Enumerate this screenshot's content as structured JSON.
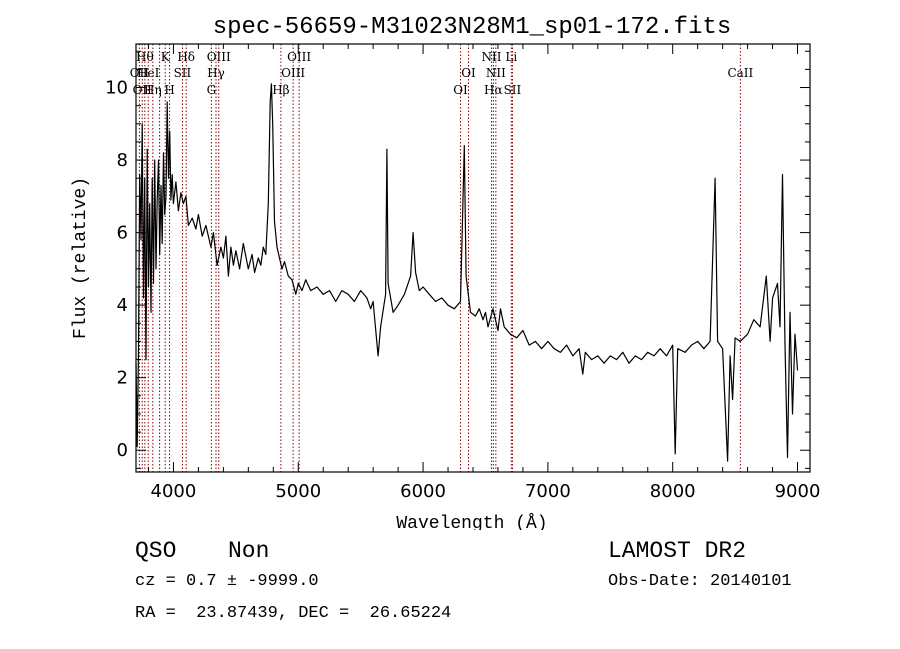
{
  "chart_data": {
    "type": "line",
    "title": "spec-56659-M31023N28M1_sp01-172.fits",
    "xlabel": "Wavelength (Å)",
    "ylabel": "Flux (relative)",
    "xlim": [
      3700,
      9100
    ],
    "ylim": [
      -0.6,
      11.2
    ],
    "x_ticks": [
      4000,
      5000,
      6000,
      7000,
      8000,
      9000
    ],
    "y_ticks": [
      0,
      2,
      4,
      6,
      8,
      10
    ],
    "grid": false,
    "series": [
      {
        "values": [
          [
            3700,
            2.4
          ],
          [
            3710,
            0.1
          ],
          [
            3720,
            2.8
          ],
          [
            3730,
            7.6
          ],
          [
            3740,
            5.8
          ],
          [
            3750,
            9.0
          ],
          [
            3760,
            4.2
          ],
          [
            3770,
            7.5
          ],
          [
            3780,
            2.5
          ],
          [
            3790,
            8.3
          ],
          [
            3800,
            4.5
          ],
          [
            3810,
            6.8
          ],
          [
            3820,
            3.8
          ],
          [
            3830,
            7.5
          ],
          [
            3840,
            4.6
          ],
          [
            3850,
            8.0
          ],
          [
            3860,
            5.0
          ],
          [
            3870,
            6.9
          ],
          [
            3880,
            8.0
          ],
          [
            3890,
            5.4
          ],
          [
            3900,
            7.3
          ],
          [
            3910,
            5.7
          ],
          [
            3920,
            8.2
          ],
          [
            3930,
            6.5
          ],
          [
            3940,
            7.0
          ],
          [
            3950,
            9.6
          ],
          [
            3960,
            7.5
          ],
          [
            3970,
            8.8
          ],
          [
            3980,
            6.9
          ],
          [
            3990,
            7.6
          ],
          [
            4000,
            6.8
          ],
          [
            4020,
            7.4
          ],
          [
            4040,
            6.6
          ],
          [
            4060,
            7.1
          ],
          [
            4080,
            6.8
          ],
          [
            4100,
            7.0
          ],
          [
            4120,
            6.2
          ],
          [
            4150,
            6.4
          ],
          [
            4180,
            6.1
          ],
          [
            4200,
            6.5
          ],
          [
            4230,
            5.9
          ],
          [
            4260,
            6.2
          ],
          [
            4300,
            5.6
          ],
          [
            4320,
            6.0
          ],
          [
            4350,
            5.1
          ],
          [
            4380,
            5.6
          ],
          [
            4400,
            5.3
          ],
          [
            4420,
            5.9
          ],
          [
            4440,
            4.8
          ],
          [
            4460,
            5.6
          ],
          [
            4480,
            5.1
          ],
          [
            4500,
            5.5
          ],
          [
            4530,
            5.0
          ],
          [
            4560,
            5.7
          ],
          [
            4600,
            5.0
          ],
          [
            4630,
            5.4
          ],
          [
            4650,
            4.9
          ],
          [
            4680,
            5.3
          ],
          [
            4700,
            5.1
          ],
          [
            4720,
            5.6
          ],
          [
            4740,
            5.4
          ],
          [
            4760,
            6.8
          ],
          [
            4775,
            9.6
          ],
          [
            4785,
            10.1
          ],
          [
            4795,
            9.0
          ],
          [
            4810,
            6.3
          ],
          [
            4830,
            5.6
          ],
          [
            4850,
            5.3
          ],
          [
            4870,
            5.0
          ],
          [
            4890,
            5.2
          ],
          [
            4920,
            4.8
          ],
          [
            4950,
            4.7
          ],
          [
            4980,
            4.3
          ],
          [
            5000,
            4.6
          ],
          [
            5030,
            4.4
          ],
          [
            5060,
            4.7
          ],
          [
            5100,
            4.4
          ],
          [
            5150,
            4.5
          ],
          [
            5200,
            4.3
          ],
          [
            5250,
            4.4
          ],
          [
            5300,
            4.1
          ],
          [
            5350,
            4.4
          ],
          [
            5400,
            4.3
          ],
          [
            5450,
            4.1
          ],
          [
            5500,
            4.4
          ],
          [
            5550,
            4.2
          ],
          [
            5580,
            3.9
          ],
          [
            5600,
            4.1
          ],
          [
            5640,
            2.6
          ],
          [
            5660,
            3.4
          ],
          [
            5700,
            4.3
          ],
          [
            5710,
            8.3
          ],
          [
            5720,
            4.6
          ],
          [
            5760,
            3.8
          ],
          [
            5800,
            4.0
          ],
          [
            5850,
            4.3
          ],
          [
            5900,
            4.8
          ],
          [
            5920,
            6.0
          ],
          [
            5940,
            4.9
          ],
          [
            5970,
            4.4
          ],
          [
            6000,
            4.5
          ],
          [
            6050,
            4.3
          ],
          [
            6100,
            4.1
          ],
          [
            6150,
            4.2
          ],
          [
            6200,
            4.0
          ],
          [
            6250,
            3.9
          ],
          [
            6300,
            4.1
          ],
          [
            6330,
            8.4
          ],
          [
            6345,
            4.8
          ],
          [
            6380,
            3.8
          ],
          [
            6420,
            3.7
          ],
          [
            6450,
            3.9
          ],
          [
            6480,
            3.6
          ],
          [
            6500,
            3.8
          ],
          [
            6520,
            3.4
          ],
          [
            6560,
            3.9
          ],
          [
            6580,
            3.6
          ],
          [
            6600,
            3.3
          ],
          [
            6620,
            3.9
          ],
          [
            6650,
            3.4
          ],
          [
            6700,
            3.2
          ],
          [
            6750,
            3.1
          ],
          [
            6800,
            3.3
          ],
          [
            6850,
            2.9
          ],
          [
            6900,
            3.0
          ],
          [
            6950,
            2.8
          ],
          [
            7000,
            3.0
          ],
          [
            7050,
            2.8
          ],
          [
            7100,
            2.7
          ],
          [
            7150,
            2.9
          ],
          [
            7200,
            2.6
          ],
          [
            7250,
            2.8
          ],
          [
            7280,
            2.1
          ],
          [
            7300,
            2.7
          ],
          [
            7350,
            2.5
          ],
          [
            7400,
            2.6
          ],
          [
            7450,
            2.4
          ],
          [
            7500,
            2.6
          ],
          [
            7550,
            2.5
          ],
          [
            7600,
            2.7
          ],
          [
            7650,
            2.4
          ],
          [
            7700,
            2.6
          ],
          [
            7750,
            2.5
          ],
          [
            7800,
            2.7
          ],
          [
            7850,
            2.6
          ],
          [
            7900,
            2.8
          ],
          [
            7950,
            2.6
          ],
          [
            8000,
            2.9
          ],
          [
            8020,
            -0.1
          ],
          [
            8040,
            2.8
          ],
          [
            8100,
            2.7
          ],
          [
            8150,
            2.9
          ],
          [
            8200,
            3.0
          ],
          [
            8250,
            2.8
          ],
          [
            8300,
            3.0
          ],
          [
            8340,
            7.5
          ],
          [
            8360,
            3.0
          ],
          [
            8400,
            2.8
          ],
          [
            8440,
            -0.3
          ],
          [
            8460,
            2.6
          ],
          [
            8480,
            1.4
          ],
          [
            8500,
            3.1
          ],
          [
            8540,
            3.0
          ],
          [
            8600,
            3.2
          ],
          [
            8650,
            3.6
          ],
          [
            8700,
            3.4
          ],
          [
            8750,
            4.8
          ],
          [
            8780,
            3.0
          ],
          [
            8800,
            4.2
          ],
          [
            8840,
            4.6
          ],
          [
            8860,
            3.4
          ],
          [
            8880,
            7.6
          ],
          [
            8900,
            2.9
          ],
          [
            8920,
            -0.2
          ],
          [
            8940,
            3.8
          ],
          [
            8960,
            1.0
          ],
          [
            8980,
            3.2
          ],
          [
            9000,
            2.2
          ]
        ]
      }
    ],
    "line_markers": [
      {
        "wavelength": 3727,
        "label": "OII",
        "row": 1
      },
      {
        "wavelength": 3750,
        "label": "OII",
        "row": 2
      },
      {
        "wavelength": 3771,
        "label": "Hθ",
        "row": 0
      },
      {
        "wavelength": 3798,
        "label": "HeI",
        "row": 1
      },
      {
        "wavelength": 3835,
        "label": "Hη",
        "row": 2
      },
      {
        "wavelength": 3889,
        "label": "",
        "row": 0
      },
      {
        "wavelength": 3934,
        "label": "K",
        "row": 0
      },
      {
        "wavelength": 3969,
        "label": "H",
        "row": 2
      },
      {
        "wavelength": 4072,
        "label": "SII",
        "row": 1
      },
      {
        "wavelength": 4102,
        "label": "Hδ",
        "row": 0
      },
      {
        "wavelength": 4304,
        "label": "G",
        "row": 2
      },
      {
        "wavelength": 4341,
        "label": "Hγ",
        "row": 1
      },
      {
        "wavelength": 4363,
        "label": "OIII",
        "row": 0
      },
      {
        "wavelength": 4861,
        "label": "Hβ",
        "row": 2
      },
      {
        "wavelength": 4959,
        "label": "OIII",
        "row": 1
      },
      {
        "wavelength": 5007,
        "label": "OIII",
        "row": 0
      },
      {
        "wavelength": 6300,
        "label": "OI",
        "row": 2
      },
      {
        "wavelength": 6364,
        "label": "OI",
        "row": 1
      },
      {
        "wavelength": 6548,
        "label": "NII",
        "row": 0
      },
      {
        "wavelength": 6563,
        "label": "Hα",
        "row": 2
      },
      {
        "wavelength": 6583,
        "label": "NII",
        "row": 1
      },
      {
        "wavelength": 6707,
        "label": "Li",
        "row": 0
      },
      {
        "wavelength": 6716,
        "label": "SII",
        "row": 2
      },
      {
        "wavelength": 8542,
        "label": "CaII",
        "row": 1
      }
    ],
    "marker_color": "#8b0000",
    "line_color": "#000000"
  },
  "info": {
    "class": "QSO",
    "subclass": "Non",
    "survey": "LAMOST DR2",
    "cz_line": "cz = 0.7 ± -9999.0",
    "obs_date": "Obs-Date: 20140101",
    "coords": "RA =  23.87439, DEC =  26.65224"
  }
}
